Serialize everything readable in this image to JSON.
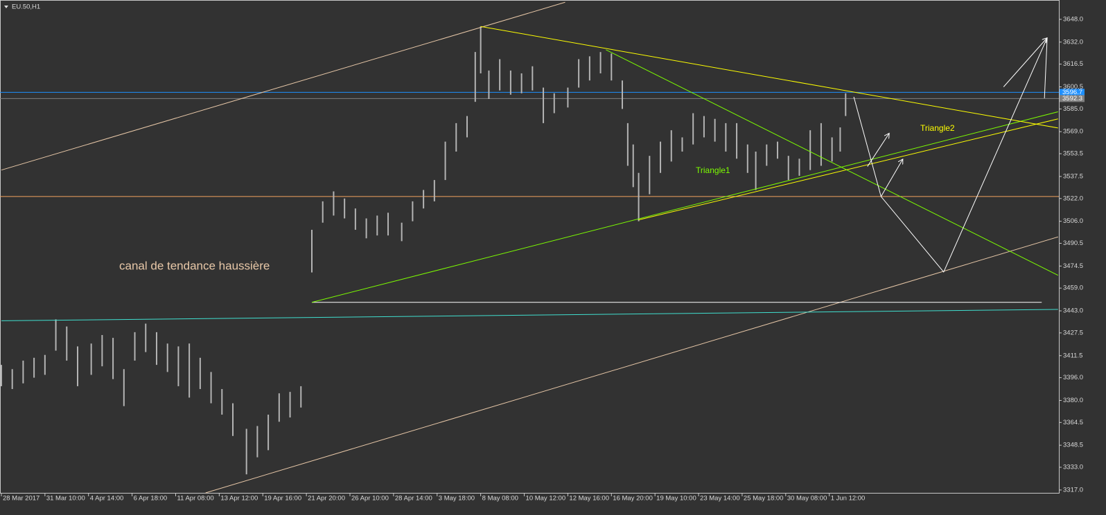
{
  "chart_data": {
    "type": "ohlc",
    "title": "EU.50,H1",
    "xlim": [
      -0.5,
      388.3
    ],
    "ylim": [
      3315,
      3661.6
    ],
    "xticks": [
      {
        "value": 0,
        "label": "28 Mar 2017"
      },
      {
        "value": 16,
        "label": "31 Mar 10:00"
      },
      {
        "value": 32,
        "label": "4 Apr 14:00"
      },
      {
        "value": 48,
        "label": "6 Apr 18:00"
      },
      {
        "value": 64,
        "label": "11 Apr 08:00"
      },
      {
        "value": 80,
        "label": "13 Apr 12:00"
      },
      {
        "value": 96,
        "label": "19 Apr 16:00"
      },
      {
        "value": 112,
        "label": "21 Apr 20:00"
      },
      {
        "value": 128,
        "label": "26 Apr 10:00"
      },
      {
        "value": 144,
        "label": "28 Apr 14:00"
      },
      {
        "value": 160,
        "label": "3 May 18:00"
      },
      {
        "value": 176,
        "label": "8 May 08:00"
      },
      {
        "value": 192,
        "label": "10 May 12:00"
      },
      {
        "value": 208,
        "label": "12 May 16:00"
      },
      {
        "value": 224,
        "label": "16 May 20:00"
      },
      {
        "value": 240,
        "label": "19 May 10:00"
      },
      {
        "value": 256,
        "label": "23 May 14:00"
      },
      {
        "value": 272,
        "label": "25 May 18:00"
      },
      {
        "value": 288,
        "label": "30 May 08:00"
      },
      {
        "value": 304,
        "label": "1 Jun 12:00"
      }
    ],
    "yticks": [
      {
        "value": 3648,
        "label": "3648.0"
      },
      {
        "value": 3632,
        "label": "3632.0"
      },
      {
        "value": 3616.5,
        "label": "3616.5"
      },
      {
        "value": 3600.5,
        "label": "3600.5"
      },
      {
        "value": 3585,
        "label": "3585.0"
      },
      {
        "value": 3569,
        "label": "3569.0"
      },
      {
        "value": 3553.5,
        "label": "3553.5"
      },
      {
        "value": 3537.5,
        "label": "3537.5"
      },
      {
        "value": 3522,
        "label": "3522.0"
      },
      {
        "value": 3506,
        "label": "3506.0"
      },
      {
        "value": 3490.5,
        "label": "3490.5"
      },
      {
        "value": 3474.5,
        "label": "3474.5"
      },
      {
        "value": 3459,
        "label": "3459.0"
      },
      {
        "value": 3443,
        "label": "3443.0"
      },
      {
        "value": 3427.5,
        "label": "3427.5"
      },
      {
        "value": 3411.5,
        "label": "3411.5"
      },
      {
        "value": 3396,
        "label": "3396.0"
      },
      {
        "value": 3380,
        "label": "3380.0"
      },
      {
        "value": 3364.5,
        "label": "3364.5"
      },
      {
        "value": 3348.5,
        "label": "3348.5"
      },
      {
        "value": 3333,
        "label": "3333.0"
      },
      {
        "value": 3317,
        "label": "3317.0"
      }
    ],
    "series": [
      {
        "color": "#b4b4b4",
        "x": [
          0,
          4,
          8,
          12,
          16,
          20,
          24,
          28,
          33,
          37,
          41,
          45,
          49,
          53,
          57,
          61,
          65,
          69,
          73,
          77,
          81,
          85,
          90,
          94,
          98,
          102,
          106,
          110,
          114,
          118,
          122,
          126,
          130,
          134,
          138,
          142,
          147,
          151,
          155,
          159,
          163,
          167,
          171,
          174,
          176,
          179,
          183,
          187,
          191,
          195,
          199,
          203,
          208,
          212,
          216,
          220,
          224,
          228,
          230,
          232,
          234,
          238,
          242,
          246,
          250,
          254,
          258,
          262,
          266,
          270,
          274,
          277,
          281,
          285,
          289,
          293,
          297,
          301,
          305,
          308,
          310
        ],
        "high": [
          3405,
          3402,
          3408,
          3410,
          3412,
          3437,
          3432,
          3418,
          3420,
          3426,
          3424,
          3402,
          3428,
          3434,
          3428,
          3420,
          3418,
          3420,
          3410,
          3400,
          3388,
          3378,
          3360,
          3362,
          3370,
          3385,
          3386,
          3390,
          3500,
          3520,
          3527,
          3522,
          3515,
          3508,
          3510,
          3512,
          3505,
          3520,
          3528,
          3535,
          3562,
          3575,
          3580,
          3625,
          3643,
          3612,
          3620,
          3612,
          3610,
          3615,
          3600,
          3596,
          3600,
          3620,
          3622,
          3625,
          3624,
          3605,
          3575,
          3560,
          3540,
          3552,
          3562,
          3570,
          3565,
          3582,
          3580,
          3578,
          3575,
          3575,
          3560,
          3555,
          3560,
          3562,
          3552,
          3550,
          3570,
          3575,
          3565,
          3572,
          3596
        ],
        "low": [
          3390,
          3388,
          3392,
          3396,
          3398,
          3415,
          3408,
          3390,
          3398,
          3404,
          3395,
          3376,
          3408,
          3414,
          3405,
          3400,
          3390,
          3382,
          3388,
          3378,
          3370,
          3355,
          3328,
          3340,
          3345,
          3365,
          3368,
          3375,
          3470,
          3505,
          3510,
          3508,
          3500,
          3494,
          3496,
          3496,
          3492,
          3506,
          3515,
          3520,
          3535,
          3555,
          3565,
          3590,
          3610,
          3592,
          3598,
          3595,
          3596,
          3598,
          3575,
          3582,
          3586,
          3600,
          3605,
          3610,
          3605,
          3585,
          3545,
          3530,
          3506,
          3525,
          3540,
          3548,
          3555,
          3560,
          3565,
          3562,
          3555,
          3550,
          3540,
          3528,
          3545,
          3550,
          3535,
          3538,
          3542,
          3545,
          3548,
          3555,
          3580
        ]
      }
    ],
    "hlines": [
      {
        "value": 3596.7,
        "color": "#1e90ff"
      },
      {
        "value": 3592.3,
        "color": "#808080"
      },
      {
        "value": 3523.4,
        "color": "#f4a460"
      }
    ],
    "lines": [
      {
        "color": "#e8c8a8",
        "x": [
          0,
          207
        ],
        "y": [
          3542,
          3660
        ]
      },
      {
        "color": "#e8c8a8",
        "x": [
          75,
          388
        ],
        "y": [
          3315,
          3495
        ]
      },
      {
        "color": "#40e0d0",
        "x": [
          0,
          388
        ],
        "y": [
          3436,
          3444
        ]
      },
      {
        "color": "#ffffff",
        "x": [
          114,
          382
        ],
        "y": [
          3449,
          3449
        ]
      },
      {
        "color": "#7cfc00",
        "x": [
          114,
          388
        ],
        "y": [
          3449,
          3583
        ]
      },
      {
        "color": "#ffff00",
        "x": [
          234,
          388
        ],
        "y": [
          3507,
          3578
        ]
      },
      {
        "color": "#ffff00",
        "x": [
          176,
          388
        ],
        "y": [
          3643,
          3571.6
        ]
      },
      {
        "color": "#7cfc00",
        "x": [
          222,
          388
        ],
        "y": [
          3626.6,
          3468
        ]
      },
      {
        "color": "#ffffff",
        "x": [
          313,
          323,
          346,
          384,
          383
        ],
        "y": [
          3593.5,
          3523.4,
          3470.3,
          3635,
          3592.5
        ]
      },
      {
        "color": "#ffffff",
        "arrow": true,
        "x": [
          318,
          326
        ],
        "y": [
          3544.5,
          3567.9
        ]
      },
      {
        "color": "#ffffff",
        "arrow": true,
        "x": [
          323,
          331
        ],
        "y": [
          3523.4,
          3549.7
        ]
      },
      {
        "color": "#ffffff",
        "arrow": true,
        "x": [
          368,
          384
        ],
        "y": [
          3600.5,
          3635
        ]
      }
    ],
    "annotations": [
      {
        "text": "canal de tendance haussière",
        "color": "#e8c8a8"
      },
      {
        "text": "Triangle1",
        "color": "#7cfc00"
      },
      {
        "text": "Triangle2",
        "color": "#ffff00"
      }
    ]
  }
}
